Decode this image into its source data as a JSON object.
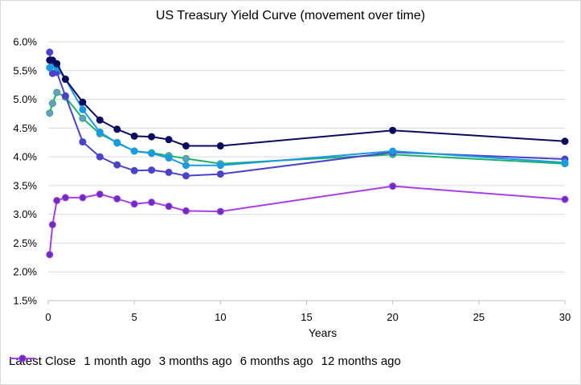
{
  "chart_data": {
    "type": "line",
    "title": "US Treasury Yield Curve (movement over time)",
    "xlabel": "Years",
    "ylabel": "",
    "xlim": [
      0,
      30
    ],
    "ylim": [
      1.5,
      6.0
    ],
    "x_ticks": [
      "0",
      "5",
      "10",
      "15",
      "20",
      "25",
      "30"
    ],
    "y_ticks": [
      "1.5%",
      "2.0%",
      "2.5%",
      "3.0%",
      "3.5%",
      "4.0%",
      "4.5%",
      "5.0%",
      "5.5%",
      "6.0%"
    ],
    "grid": "horizontal",
    "legend_position": "bottom",
    "series": [
      {
        "name": "Latest Close",
        "color": "#0a0a5e",
        "x": [
          0.083,
          0.25,
          0.5,
          1,
          2,
          3,
          4,
          5,
          6,
          7,
          8,
          10,
          20,
          30
        ],
        "y": [
          5.68,
          5.68,
          5.62,
          5.35,
          4.95,
          4.64,
          4.48,
          4.36,
          4.35,
          4.3,
          4.19,
          4.19,
          4.46,
          4.27
        ]
      },
      {
        "name": "1 month ago",
        "color": "#1a9ae0",
        "x": [
          0.083,
          0.25,
          0.5,
          1,
          2,
          3,
          4,
          5,
          6,
          7,
          8,
          10,
          20,
          30
        ],
        "y": [
          5.55,
          5.6,
          5.55,
          5.35,
          4.82,
          4.43,
          4.24,
          4.1,
          4.06,
          3.98,
          3.85,
          3.85,
          4.1,
          3.9
        ]
      },
      {
        "name": "3 months ago",
        "color": "#4a42c9",
        "x": [
          0.083,
          0.25,
          0.5,
          1,
          2,
          3,
          4,
          5,
          6,
          7,
          8,
          10,
          20,
          30
        ],
        "y": [
          5.82,
          5.45,
          5.47,
          5.06,
          4.26,
          4.0,
          3.86,
          3.76,
          3.77,
          3.73,
          3.67,
          3.7,
          4.08,
          3.96
        ]
      },
      {
        "name": "6 months ago",
        "color": "#19b26b",
        "marker": "#6e9ac9",
        "x": [
          0.083,
          0.25,
          0.5,
          1,
          2,
          3,
          4,
          5,
          6,
          7,
          8,
          10,
          20,
          30
        ],
        "y": [
          4.76,
          4.93,
          5.12,
          5.04,
          4.67,
          4.4,
          4.25,
          4.1,
          4.07,
          4.02,
          3.97,
          3.88,
          4.04,
          3.88
        ]
      },
      {
        "name": "12 months ago",
        "color": "#a83ee6",
        "marker": "#6a2fc0",
        "x": [
          0.083,
          0.25,
          0.5,
          1,
          2,
          3,
          4,
          5,
          6,
          7,
          8,
          10,
          20,
          30
        ],
        "y": [
          2.3,
          2.82,
          3.24,
          3.29,
          3.29,
          3.35,
          3.27,
          3.18,
          3.21,
          3.14,
          3.06,
          3.05,
          3.49,
          3.26
        ]
      }
    ]
  }
}
